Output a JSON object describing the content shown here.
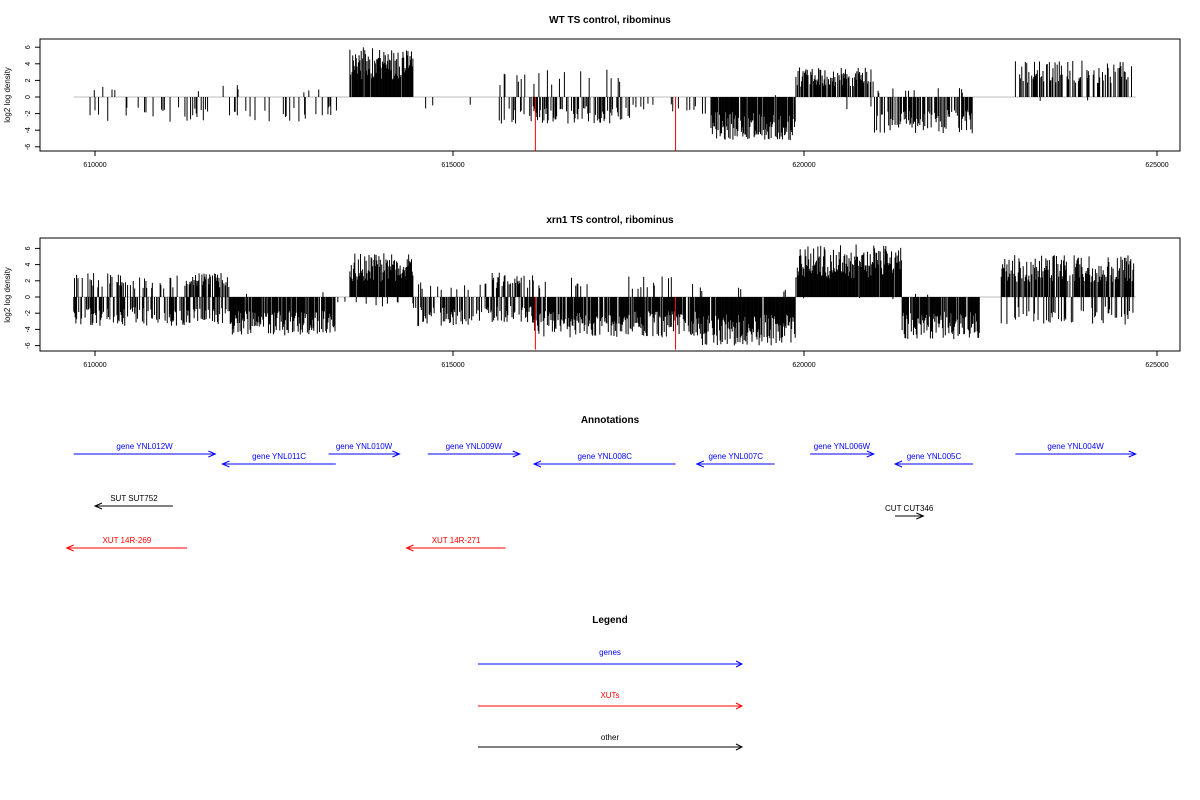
{
  "colors": {
    "gene": "#0000ff",
    "xut": "#ff0000",
    "other": "#000000",
    "highlight": "#ff0000",
    "baseline": "#bebebe"
  },
  "chart_data": [
    {
      "type": "bar",
      "title": "WT TS control, ribominus",
      "ylabel": "log2 log density",
      "xlim": [
        609000,
        625500
      ],
      "ylim": [
        -6.5,
        7.5
      ],
      "xticks": [
        "610000",
        "615000",
        "620000",
        "625000"
      ],
      "yticks": [
        "-6",
        "-4",
        "-2",
        "0",
        "2",
        "4",
        "6"
      ],
      "highlight_x": [
        616220,
        618200
      ],
      "segments": [
        {
          "start": 609700,
          "end": 613600,
          "pos": 1.6,
          "neg": 3.0,
          "pos_density": 0.03,
          "neg_density": 0.12
        },
        {
          "start": 613600,
          "end": 614500,
          "pos": 6.0,
          "neg": 0.2,
          "pos_density": 0.95,
          "neg_density": 0.0
        },
        {
          "start": 614500,
          "end": 615700,
          "pos": 0.4,
          "neg": 2.0,
          "pos_density": 0.0,
          "neg_density": 0.03
        },
        {
          "start": 615700,
          "end": 617600,
          "pos": 3.4,
          "neg": 3.2,
          "pos_density": 0.1,
          "neg_density": 0.35
        },
        {
          "start": 617600,
          "end": 618700,
          "pos": 0.6,
          "neg": 2.2,
          "pos_density": 0.0,
          "neg_density": 0.15
        },
        {
          "start": 618700,
          "end": 619900,
          "pos": 0.4,
          "neg": 5.2,
          "pos_density": 0.02,
          "neg_density": 0.92
        },
        {
          "start": 619900,
          "end": 621000,
          "pos": 3.6,
          "neg": 1.5,
          "pos_density": 0.85,
          "neg_density": 0.05
        },
        {
          "start": 621000,
          "end": 622400,
          "pos": 1.2,
          "neg": 4.4,
          "pos_density": 0.05,
          "neg_density": 0.55
        },
        {
          "start": 622400,
          "end": 623000,
          "pos": 0.2,
          "neg": 0.3,
          "pos_density": 0.0,
          "neg_density": 0.0
        },
        {
          "start": 623000,
          "end": 624700,
          "pos": 4.4,
          "neg": 0.6,
          "pos_density": 0.5,
          "neg_density": 0.02
        }
      ]
    },
    {
      "type": "bar",
      "title": "xrn1 TS control, ribominus",
      "ylabel": "log2 log density",
      "xlim": [
        609000,
        625500
      ],
      "ylim": [
        -6.5,
        7.5
      ],
      "xticks": [
        "610000",
        "615000",
        "620000",
        "625000"
      ],
      "yticks": [
        "-6",
        "-4",
        "-2",
        "0",
        "2",
        "4",
        "6"
      ],
      "highlight_x": [
        616220,
        618200
      ],
      "segments": [
        {
          "start": 609700,
          "end": 611300,
          "pos": 3.0,
          "neg": 3.6,
          "pos_density": 0.25,
          "neg_density": 0.5
        },
        {
          "start": 611300,
          "end": 611900,
          "pos": 3.0,
          "neg": 3.4,
          "pos_density": 0.5,
          "neg_density": 0.6
        },
        {
          "start": 611900,
          "end": 613400,
          "pos": 0.6,
          "neg": 4.8,
          "pos_density": 0.02,
          "neg_density": 0.85
        },
        {
          "start": 613400,
          "end": 613600,
          "pos": 0.2,
          "neg": 1.0,
          "pos_density": 0.0,
          "neg_density": 0.1
        },
        {
          "start": 613600,
          "end": 614500,
          "pos": 5.4,
          "neg": 1.2,
          "pos_density": 0.92,
          "neg_density": 0.1
        },
        {
          "start": 614500,
          "end": 615600,
          "pos": 2.0,
          "neg": 3.6,
          "pos_density": 0.15,
          "neg_density": 0.5
        },
        {
          "start": 615600,
          "end": 616200,
          "pos": 3.0,
          "neg": 3.2,
          "pos_density": 0.4,
          "neg_density": 0.55
        },
        {
          "start": 616200,
          "end": 618500,
          "pos": 2.6,
          "neg": 5.0,
          "pos_density": 0.08,
          "neg_density": 0.9
        },
        {
          "start": 618500,
          "end": 619900,
          "pos": 1.2,
          "neg": 6.0,
          "pos_density": 0.05,
          "neg_density": 0.95
        },
        {
          "start": 619900,
          "end": 621400,
          "pos": 6.5,
          "neg": 0.3,
          "pos_density": 0.95,
          "neg_density": 0.02
        },
        {
          "start": 621400,
          "end": 622500,
          "pos": 0.8,
          "neg": 5.2,
          "pos_density": 0.05,
          "neg_density": 0.85
        },
        {
          "start": 622500,
          "end": 622800,
          "pos": 0.3,
          "neg": 0.3,
          "pos_density": 0.0,
          "neg_density": 0.0
        },
        {
          "start": 622800,
          "end": 624700,
          "pos": 5.2,
          "neg": 3.4,
          "pos_density": 0.75,
          "neg_density": 0.3
        }
      ]
    }
  ],
  "annotations": {
    "title": "Annotations",
    "rows": [
      [
        {
          "label": "gene YNL012W",
          "start": 609700,
          "end": 611700,
          "strand": "+",
          "type": "gene"
        },
        {
          "label": "gene YNL010W",
          "start": 613300,
          "end": 614300,
          "strand": "+",
          "type": "gene"
        },
        {
          "label": "gene YNL009W",
          "start": 614700,
          "end": 616000,
          "strand": "+",
          "type": "gene"
        },
        {
          "label": "gene YNL006W",
          "start": 620100,
          "end": 621000,
          "strand": "+",
          "type": "gene"
        },
        {
          "label": "gene YNL004W",
          "start": 623000,
          "end": 624700,
          "strand": "+",
          "type": "gene"
        }
      ],
      [
        {
          "label": "gene YNL011C",
          "start": 611800,
          "end": 613400,
          "strand": "-",
          "type": "gene"
        },
        {
          "label": "gene YNL008C",
          "start": 616200,
          "end": 618200,
          "strand": "-",
          "type": "gene"
        },
        {
          "label": "gene YNL007C",
          "start": 618500,
          "end": 619600,
          "strand": "-",
          "type": "gene"
        },
        {
          "label": "gene YNL005C",
          "start": 621300,
          "end": 622400,
          "strand": "-",
          "type": "gene"
        }
      ],
      [
        {
          "label": "SUT SUT752",
          "start": 610000,
          "end": 611100,
          "strand": "-",
          "type": "other"
        }
      ],
      [
        {
          "label": "CUT CUT346",
          "start": 621300,
          "end": 621700,
          "strand": "+",
          "type": "other"
        }
      ],
      [
        {
          "label": "XUT 14R-269",
          "start": 609600,
          "end": 611300,
          "strand": "-",
          "type": "xut"
        },
        {
          "label": "XUT 14R-271",
          "start": 614400,
          "end": 615800,
          "strand": "-",
          "type": "xut"
        }
      ]
    ]
  },
  "legend": {
    "title": "Legend",
    "items": [
      {
        "label": "genes",
        "type": "gene"
      },
      {
        "label": "XUTs",
        "type": "xut"
      },
      {
        "label": "other",
        "type": "other"
      }
    ]
  }
}
